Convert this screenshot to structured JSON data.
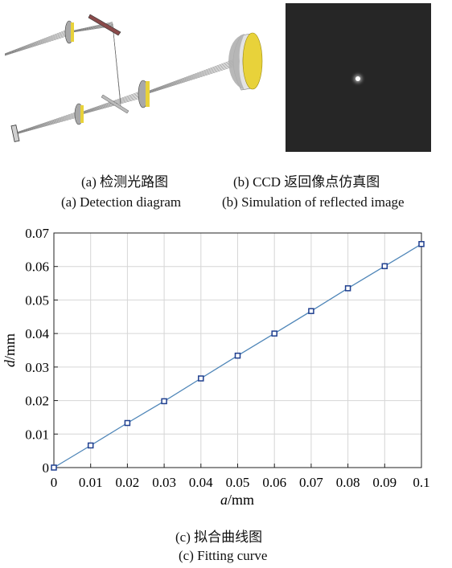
{
  "captions": {
    "a_cn": "(a) 检测光路图",
    "a_en": "(a) Detection diagram",
    "b_cn": "(b) CCD 返回像点仿真图",
    "b_en": "(b) Simulation of reflected image",
    "c_cn": "(c) 拟合曲线图",
    "c_en": "(c) Fitting curve"
  },
  "colors": {
    "line": "#4f86b8",
    "marker": "#1f3f8f",
    "ccd_background": "#262626",
    "lens_yellow": "#e8d23a",
    "lens_gray": "#9a9a9a"
  },
  "chart_data": {
    "type": "line",
    "title": "",
    "xlabel": "a/mm",
    "ylabel": "d/mm",
    "xlim": [
      0,
      0.1
    ],
    "ylim": [
      0,
      0.07
    ],
    "xticks": [
      "0",
      "0.01",
      "0.02",
      "0.03",
      "0.04",
      "0.05",
      "0.06",
      "0.07",
      "0.08",
      "0.09",
      "0.1"
    ],
    "yticks": [
      "0",
      "0.01",
      "0.02",
      "0.03",
      "0.04",
      "0.05",
      "0.06",
      "0.07"
    ],
    "grid": true,
    "x": [
      0,
      0.01,
      0.02,
      0.03,
      0.04,
      0.05,
      0.06,
      0.07,
      0.08,
      0.09,
      0.1
    ],
    "series": [
      {
        "values": [
          0,
          0.0066,
          0.0133,
          0.0198,
          0.0266,
          0.0334,
          0.04,
          0.0467,
          0.0535,
          0.0601,
          0.0667
        ]
      }
    ]
  }
}
